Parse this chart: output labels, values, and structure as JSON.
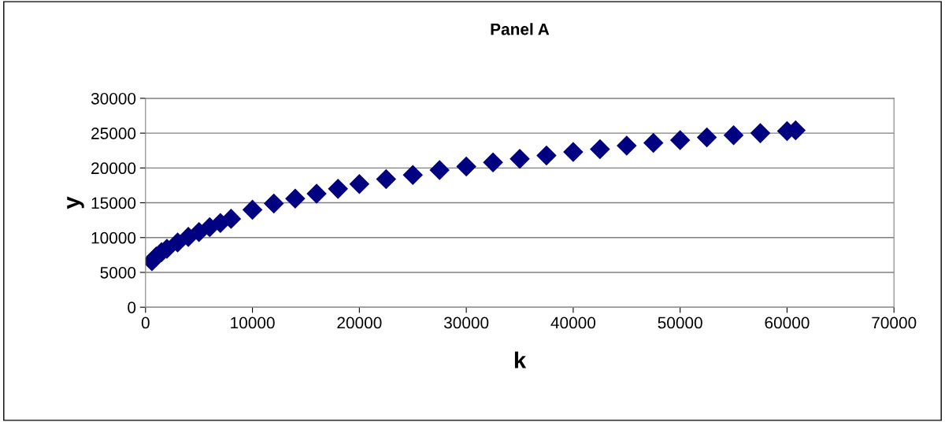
{
  "chart_data": {
    "type": "scatter",
    "title": "Panel A",
    "xlabel": "k",
    "ylabel": "y",
    "x": [
      600,
      1000,
      1500,
      2000,
      3000,
      4000,
      5000,
      6000,
      7000,
      8000,
      10000,
      12000,
      14000,
      16000,
      18000,
      20000,
      22500,
      25000,
      27500,
      30000,
      32500,
      35000,
      37500,
      40000,
      42500,
      45000,
      47500,
      50000,
      52500,
      55000,
      57500,
      60000,
      60800
    ],
    "series": [
      {
        "color": "#000080",
        "values": [
          6600,
          7300,
          7900,
          8400,
          9300,
          10100,
          10800,
          11500,
          12100,
          12700,
          14000,
          14900,
          15600,
          16300,
          17000,
          17700,
          18400,
          19000,
          19700,
          20200,
          20800,
          21300,
          21800,
          22300,
          22700,
          23200,
          23600,
          24000,
          24400,
          24700,
          25000,
          25300,
          25400
        ]
      }
    ],
    "marker": "diamond",
    "grid": "y",
    "xlim": [
      0,
      70000
    ],
    "xticks": [
      0,
      10000,
      20000,
      30000,
      40000,
      50000,
      60000,
      70000
    ],
    "ylim": [
      0,
      30000
    ],
    "yticks": [
      0,
      5000,
      10000,
      15000,
      20000,
      25000,
      30000
    ]
  }
}
